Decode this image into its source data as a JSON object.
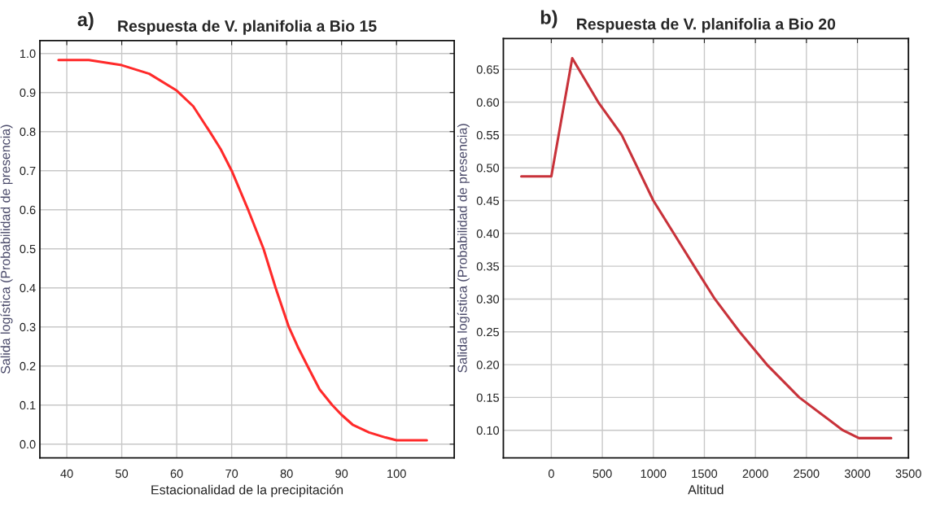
{
  "chart_data": [
    {
      "type": "line",
      "title": "Respuesta de V. planifolia a Bio 15",
      "xlabel": "Estacionalidad de la precipitación",
      "ylabel": "Salida logística (Probabilidad de presencia)",
      "annotations": [
        "a)"
      ],
      "series": [
        {
          "color": "#ff2a2a",
          "x": [
            38.5,
            44,
            50,
            55,
            60,
            63,
            66,
            68,
            70,
            73,
            75.8,
            78,
            80.4,
            82,
            83.8,
            86,
            88.3,
            90,
            92,
            95,
            98,
            100,
            105.5
          ],
          "values": [
            0.983,
            0.983,
            0.97,
            0.948,
            0.905,
            0.865,
            0.8,
            0.755,
            0.7,
            0.6,
            0.5,
            0.4,
            0.3,
            0.25,
            0.2,
            0.14,
            0.1,
            0.075,
            0.05,
            0.03,
            0.017,
            0.01,
            0.01
          ]
        }
      ],
      "xlim": [
        35.1,
        110.5
      ],
      "ylim": [
        -0.035,
        1.033
      ],
      "xticks": [
        40,
        50,
        60,
        70,
        80,
        90,
        100
      ],
      "yticks": [
        {
          "value": 0,
          "label": "0.0"
        },
        0.1,
        0.2,
        0.3,
        0.4,
        0.5,
        0.6,
        0.7,
        0.8,
        0.9,
        {
          "value": 1,
          "label": "1.0"
        }
      ],
      "grid": true
    },
    {
      "type": "line",
      "title": "Respuesta de V. planifolia a Bio 20",
      "xlabel": "Altitud",
      "ylabel": "Salida logística (Probabilidad de presencia)",
      "annotations": [
        "b)"
      ],
      "series": [
        {
          "color": "#c8323a",
          "x": [
            -294,
            0,
            205,
            460,
            690,
            1000,
            1200,
            1400,
            1603,
            1845,
            2113,
            2430,
            2857,
            3015,
            3330
          ],
          "values": [
            0.487,
            0.487,
            0.667,
            0.6,
            0.55,
            0.45,
            0.4,
            0.35,
            0.3,
            0.25,
            0.2,
            0.15,
            0.1,
            0.088,
            0.088
          ]
        }
      ],
      "xlim": [
        -470,
        3500
      ],
      "ylim": [
        0.058,
        0.697
      ],
      "xticks": [
        0,
        500,
        1000,
        1500,
        2000,
        2500,
        3000,
        3500
      ],
      "yticks": [
        {
          "value": 0.1,
          "label": "0.10"
        },
        0.15,
        {
          "value": 0.2,
          "label": "0.20"
        },
        0.25,
        {
          "value": 0.3,
          "label": "0.30"
        },
        0.35,
        {
          "value": 0.4,
          "label": "0.40"
        },
        0.45,
        {
          "value": 0.5,
          "label": "0.50"
        },
        0.55,
        {
          "value": 0.6,
          "label": "0.60"
        },
        0.65
      ],
      "grid": true
    }
  ]
}
